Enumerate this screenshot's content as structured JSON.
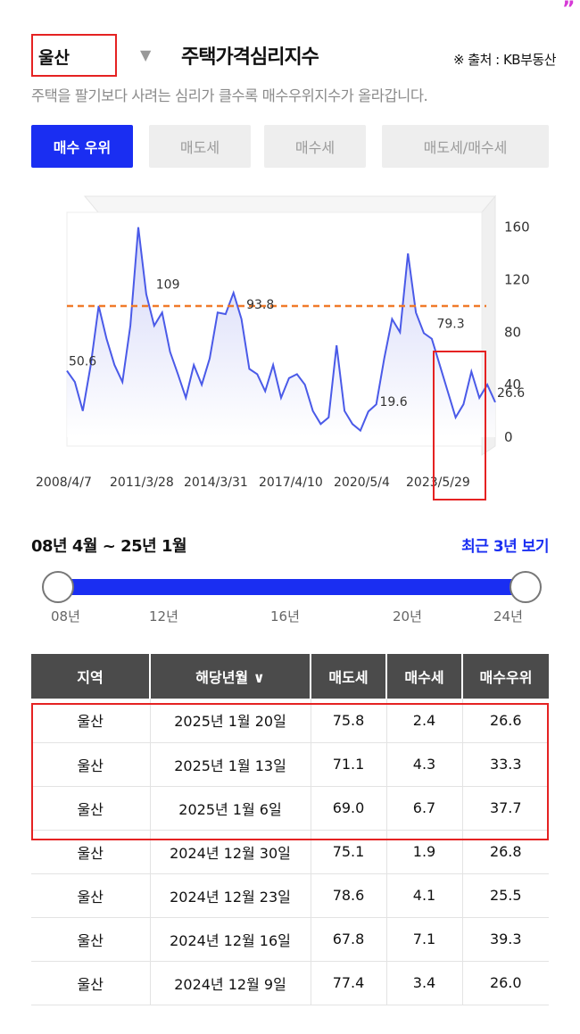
{
  "decor": {
    "quote_mark": "”"
  },
  "header": {
    "region": "울산",
    "title": "주택가격심리지수",
    "source": "※ 출처 : KB부동산",
    "subtitle": "주택을 팔기보다 사려는 심리가 클수록 매수우위지수가 올라갑니다."
  },
  "tabs": [
    {
      "label": "매수 우위",
      "active": true
    },
    {
      "label": "매도세",
      "active": false
    },
    {
      "label": "매수세",
      "active": false
    },
    {
      "label": "매도세/매수세",
      "active": false
    }
  ],
  "chart_data": {
    "type": "line",
    "title": "",
    "xlabel": "",
    "ylabel": "",
    "x_ticks": [
      "2008/4/7",
      "2011/3/28",
      "2014/3/31",
      "2017/4/10",
      "2020/5/4",
      "2023/5/29"
    ],
    "y_ticks": [
      0,
      40,
      80,
      120,
      160
    ],
    "ylim": [
      0,
      170
    ],
    "reference_line": 100,
    "annotations": [
      {
        "label": "50.6",
        "x": 0.0,
        "y": 50.6
      },
      {
        "label": "109",
        "x": 5.5,
        "y": 109
      },
      {
        "label": "93.8",
        "x": 11.2,
        "y": 93.8
      },
      {
        "label": "19.6",
        "x": 19.6,
        "y": 19.6
      },
      {
        "label": "79.3",
        "x": 23.2,
        "y": 79.3
      },
      {
        "label": "26.6",
        "x": 27.0,
        "y": 26.6
      }
    ],
    "series": [
      {
        "color": "#4a5ae8",
        "x": [
          0,
          0.5,
          1.0,
          1.5,
          2.0,
          2.5,
          3.0,
          3.5,
          4.0,
          4.5,
          5.0,
          5.5,
          6.0,
          6.5,
          7.0,
          7.5,
          8.0,
          8.5,
          9.0,
          9.5,
          10.0,
          10.5,
          11.0,
          11.5,
          12.0,
          12.5,
          13.0,
          13.5,
          14.0,
          14.5,
          15.0,
          15.5,
          16.0,
          16.5,
          17.0,
          17.5,
          18.0,
          18.5,
          19.0,
          19.5,
          20.0,
          20.5,
          21.0,
          21.5,
          22.0,
          22.5,
          23.0,
          23.5,
          24.0,
          24.5,
          25.0,
          25.5,
          26.0,
          26.5,
          27.0
        ],
        "values": [
          50.6,
          42,
          20,
          55,
          100,
          75,
          55,
          42,
          85,
          160,
          109,
          85,
          95,
          65,
          48,
          30,
          55,
          40,
          60,
          95,
          93.8,
          110,
          90,
          52,
          48,
          35,
          55,
          30,
          45,
          48,
          40,
          20,
          10,
          15,
          70,
          20,
          10,
          5,
          19.6,
          25,
          60,
          90,
          80,
          140,
          95,
          79.3,
          75,
          55,
          35,
          15,
          25,
          50,
          30,
          40,
          26.6
        ]
      }
    ]
  },
  "range": {
    "label": "08년 4월 ~ 25년 1월",
    "recent_link": "최근 3년 보기",
    "start": 0.0,
    "end": 1.0,
    "ticks": [
      "08년",
      "12년",
      "16년",
      "20년",
      "24년"
    ]
  },
  "table": {
    "headers": [
      "지역",
      "해당년월 ∨",
      "매도세",
      "매수세",
      "매수우위"
    ],
    "rows": [
      [
        "울산",
        "2025년 1월 20일",
        "75.8",
        "2.4",
        "26.6"
      ],
      [
        "울산",
        "2025년 1월 13일",
        "71.1",
        "4.3",
        "33.3"
      ],
      [
        "울산",
        "2025년 1월 6일",
        "69.0",
        "6.7",
        "37.7"
      ],
      [
        "울산",
        "2024년 12월 30일",
        "75.1",
        "1.9",
        "26.8"
      ],
      [
        "울산",
        "2024년 12월 23일",
        "78.6",
        "4.1",
        "25.5"
      ],
      [
        "울산",
        "2024년 12월 16일",
        "67.8",
        "7.1",
        "39.3"
      ],
      [
        "울산",
        "2024년 12월 9일",
        "77.4",
        "3.4",
        "26.0"
      ]
    ]
  }
}
